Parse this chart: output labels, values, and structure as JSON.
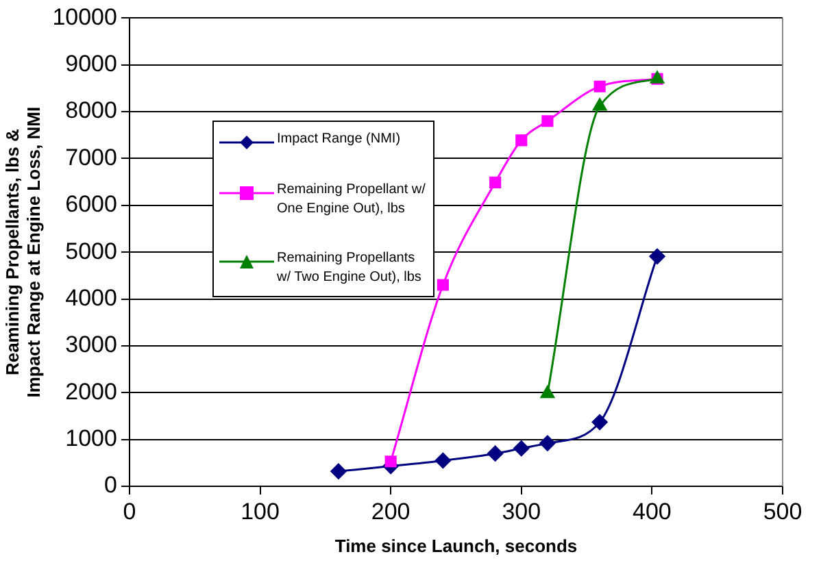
{
  "chart_data": {
    "type": "line",
    "xlabel": "Time since Launch, seconds",
    "ylabel": "Reamining Propellants, lbs & Impact Range at Engine Loss, NMI",
    "xlim": [
      0,
      500
    ],
    "xticks": [
      0,
      100,
      200,
      300,
      400,
      500
    ],
    "ylim": [
      0,
      10000
    ],
    "yticks": [
      0,
      1000,
      2000,
      3000,
      4000,
      5000,
      6000,
      7000,
      8000,
      9000,
      10000
    ],
    "grid": "y",
    "legend": "top left",
    "series": [
      {
        "name": "Impact Range (NMI)",
        "color": "#000080",
        "marker": "diamond",
        "x": [
          160,
          200,
          240,
          280,
          300,
          320,
          360,
          404
        ],
        "values": [
          320,
          430,
          550,
          700,
          810,
          920,
          1370,
          4910
        ]
      },
      {
        "name": "Remaining Propellant w/ One Engine Out), lbs",
        "color": "#ff00ff",
        "marker": "square",
        "x": [
          200,
          240,
          280,
          300,
          320,
          360,
          404
        ],
        "values": [
          530,
          4300,
          6490,
          7390,
          7800,
          8540,
          8700
        ]
      },
      {
        "name": "Remaining Propellants w/ Two Engine Out), lbs",
        "color": "#008000",
        "marker": "triangle",
        "x": [
          320,
          360,
          404
        ],
        "values": [
          1980,
          8120,
          8700
        ]
      }
    ]
  }
}
